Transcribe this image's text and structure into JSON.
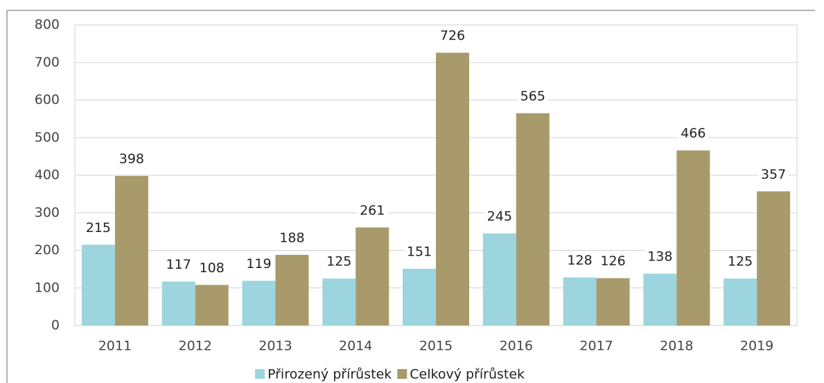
{
  "chart_data": {
    "type": "bar",
    "categories": [
      "2011",
      "2012",
      "2013",
      "2014",
      "2015",
      "2016",
      "2017",
      "2018",
      "2019"
    ],
    "series": [
      {
        "name": "Přirozený přírůstek",
        "color": "#9dd5de",
        "values": [
          215,
          117,
          119,
          125,
          151,
          245,
          128,
          138,
          125
        ]
      },
      {
        "name": "Celkový přírůstek",
        "color": "#a89a6a",
        "values": [
          398,
          108,
          188,
          261,
          726,
          565,
          126,
          466,
          357
        ]
      }
    ],
    "ylim": [
      0,
      800
    ],
    "yticks": [
      0,
      100,
      200,
      300,
      400,
      500,
      600,
      700,
      800
    ],
    "grid": true,
    "legend": "bottom"
  }
}
